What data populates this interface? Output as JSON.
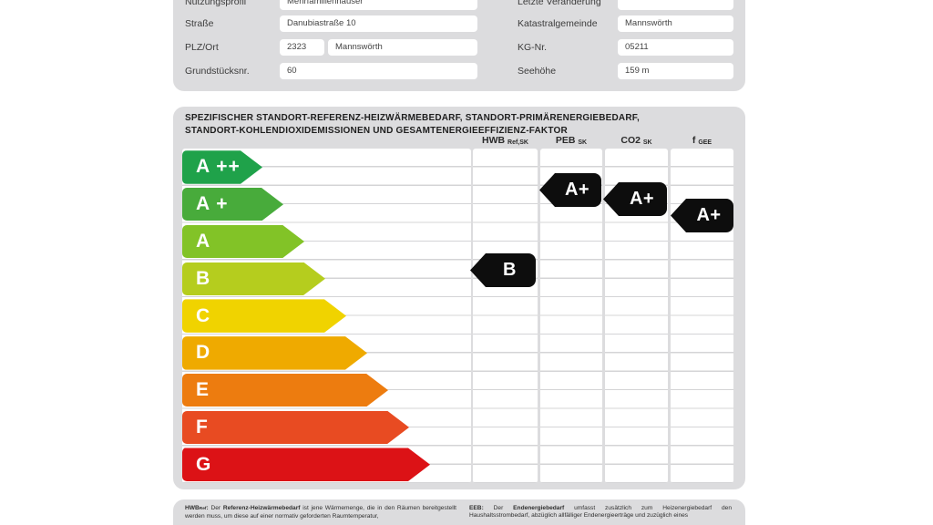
{
  "form": {
    "rows": [
      {
        "label": "Nutzungsprofil",
        "value": "Mehrfamilienhäuser",
        "label2": "Letzte Veränderung",
        "value2": ""
      },
      {
        "label": "Straße",
        "value": "Danubiastraße 10",
        "label2": "Katastralgemeinde",
        "value2": "Mannswörth"
      },
      {
        "label": "PLZ/Ort",
        "value_plz": "2323",
        "value_ort": "Mannswörth",
        "label2": "KG-Nr.",
        "value2": "05211"
      },
      {
        "label": "Grundstücksnr.",
        "value": "60",
        "label2": "Seehöhe",
        "value2": "159 m"
      }
    ]
  },
  "chart": {
    "title_line1": "SPEZIFISCHER STANDORT-REFERENZ-HEIZWÄRMEBEDARF, STANDORT-PRIMÄRENERGIEBEDARF,",
    "title_line2": "STANDORT-KOHLENDIOXIDEMISSIONEN UND GESAMTENERGIEEFFIZIENZ-FAKTOR",
    "columns": [
      {
        "main": "HWB",
        "sub": "Ref,SK"
      },
      {
        "main": "PEB",
        "sub": "SK"
      },
      {
        "main": "CO2",
        "sub": "SK"
      },
      {
        "main": "f",
        "sub": "GEE"
      }
    ]
  },
  "chart_data": {
    "type": "energy-rating-scale",
    "title": "Spezifischer Standort-Referenz-Heizwärmebedarf, Standort-Primärenergiebedarf, Standort-Kohlendioxidemissionen und Gesamtenergieeffizienz-Faktor",
    "classes": [
      {
        "label": "A ++",
        "color": "#1fa24a"
      },
      {
        "label": "A +",
        "color": "#48ab3b"
      },
      {
        "label": "A",
        "color": "#82c327"
      },
      {
        "label": "B",
        "color": "#b5cd1e"
      },
      {
        "label": "C",
        "color": "#f0d300"
      },
      {
        "label": "D",
        "color": "#efaa00"
      },
      {
        "label": "E",
        "color": "#ed7c0f"
      },
      {
        "label": "F",
        "color": "#e84b22"
      },
      {
        "label": "G",
        "color": "#dc1216"
      }
    ],
    "ratings": [
      {
        "column": "HWB Ref,SK",
        "value": "B"
      },
      {
        "column": "PEB SK",
        "value": "A+"
      },
      {
        "column": "CO2 SK",
        "value": "A+"
      },
      {
        "column": "f GEE",
        "value": "A+"
      }
    ],
    "badge_color": "#0d0d0d",
    "legend_position": "none",
    "grid": "on"
  },
  "footnotes": {
    "left": {
      "term_main": "HWB",
      "term_sub": "Ref",
      "sep": ": ",
      "lead": "Der ",
      "bold": "Referenz-Heizwärmebedarf",
      "rest": " ist jene Wärmemenge, die in den Räumen bereitgestellt werden muss, um diese auf einer normativ geforderten Raumtemperatur,"
    },
    "right": {
      "term_main": "EEB",
      "sep": ": ",
      "lead": "Der ",
      "bold": "Endenergiebedarf",
      "rest": " umfasst zusätzlich zum Heizenergiebedarf den Haushaltsstrombedarf, abzüglich allfälliger Endenergieerträge und zuzüglich eines"
    }
  }
}
